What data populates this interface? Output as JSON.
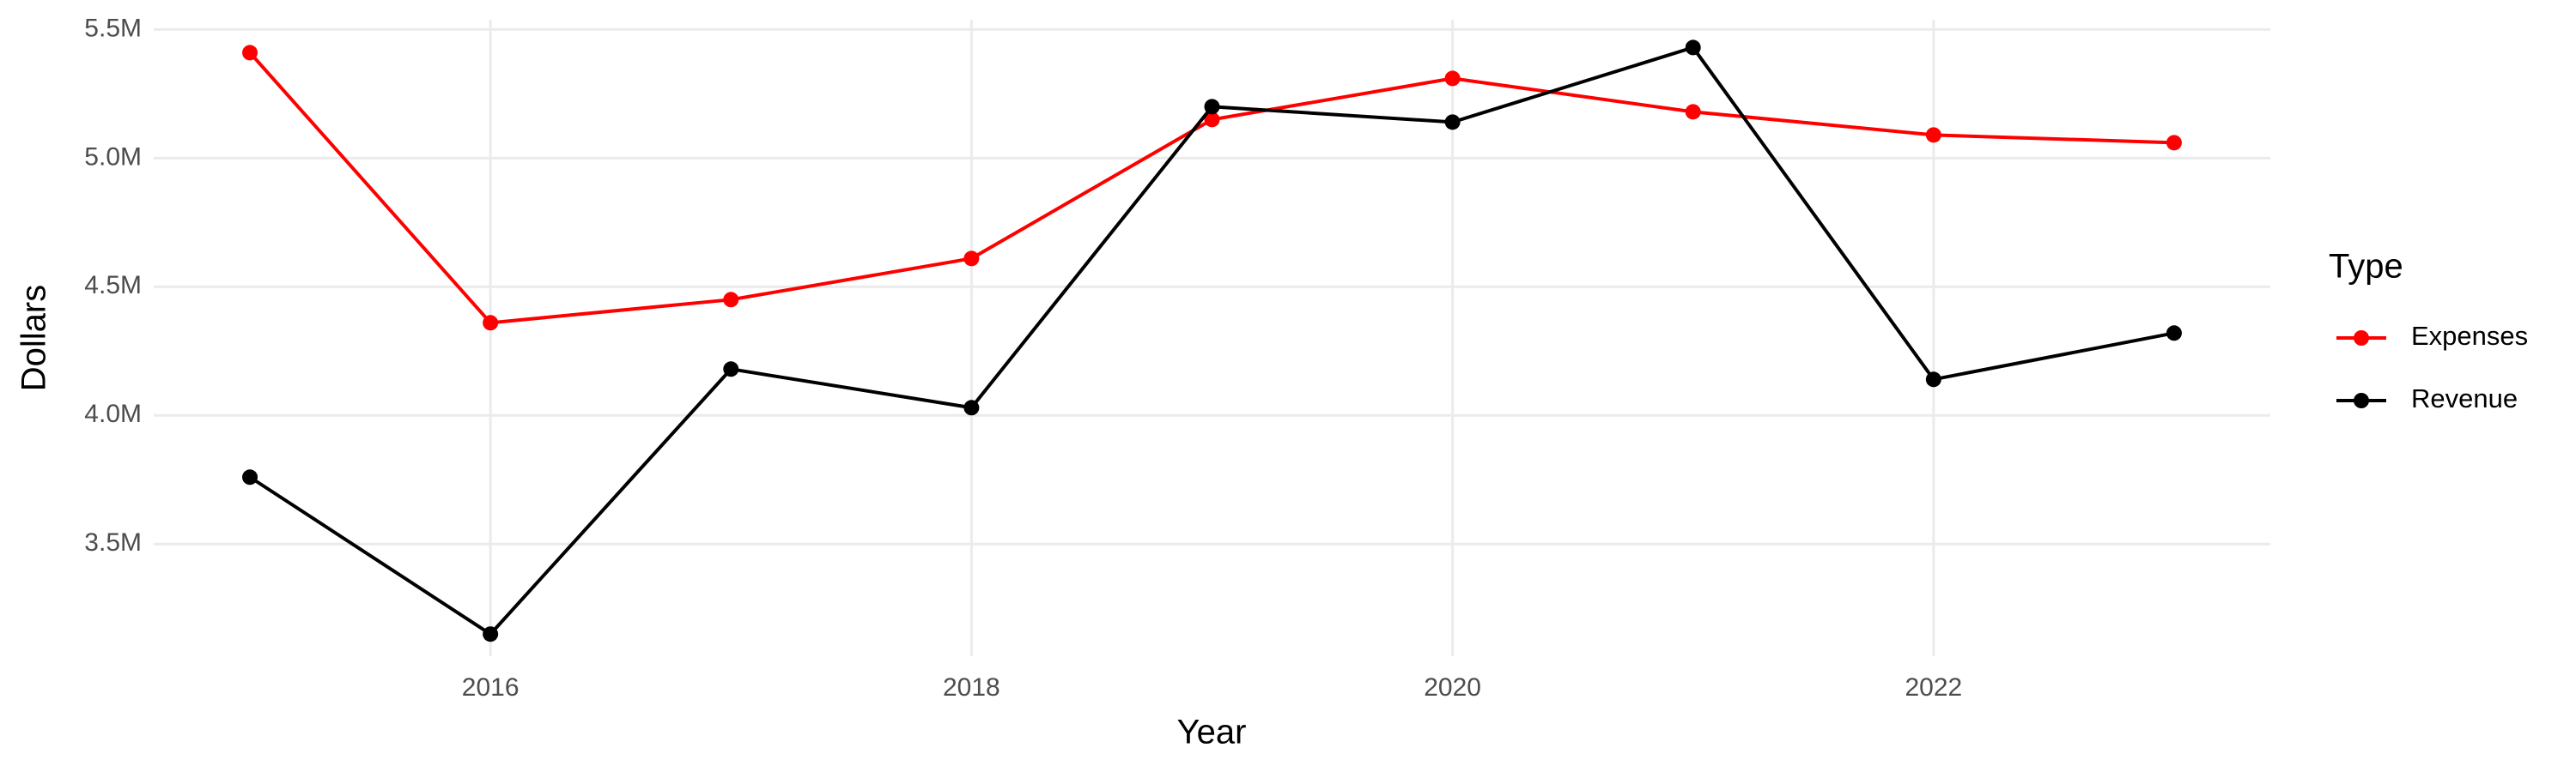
{
  "chart_data": {
    "type": "line",
    "x_label": "Year",
    "y_label": "Dollars",
    "legend_title": "Type",
    "x": [
      2015,
      2016,
      2017,
      2018,
      2019,
      2020,
      2021,
      2022,
      2023
    ],
    "series": [
      {
        "name": "Expenses",
        "color": "#ff0000",
        "values": [
          5410000,
          4360000,
          4450000,
          4610000,
          5150000,
          5310000,
          5180000,
          5090000,
          5060000
        ]
      },
      {
        "name": "Revenue",
        "color": "#000000",
        "values": [
          3760000,
          3150000,
          4180000,
          4030000,
          5200000,
          5140000,
          5430000,
          4140000,
          4320000
        ]
      }
    ],
    "xlim": [
      2014.6,
      2023.4
    ],
    "xticks": [
      2016,
      2018,
      2020,
      2022
    ],
    "ylim": [
      3064000,
      5538000
    ],
    "yticks": [
      {
        "value": 3500000,
        "label": "3.5M"
      },
      {
        "value": 4000000,
        "label": "4.0M"
      },
      {
        "value": 4500000,
        "label": "4.5M"
      },
      {
        "value": 5000000,
        "label": "5.0M"
      },
      {
        "value": 5500000,
        "label": "5.5M"
      }
    ],
    "grid": true,
    "legend": "right"
  }
}
